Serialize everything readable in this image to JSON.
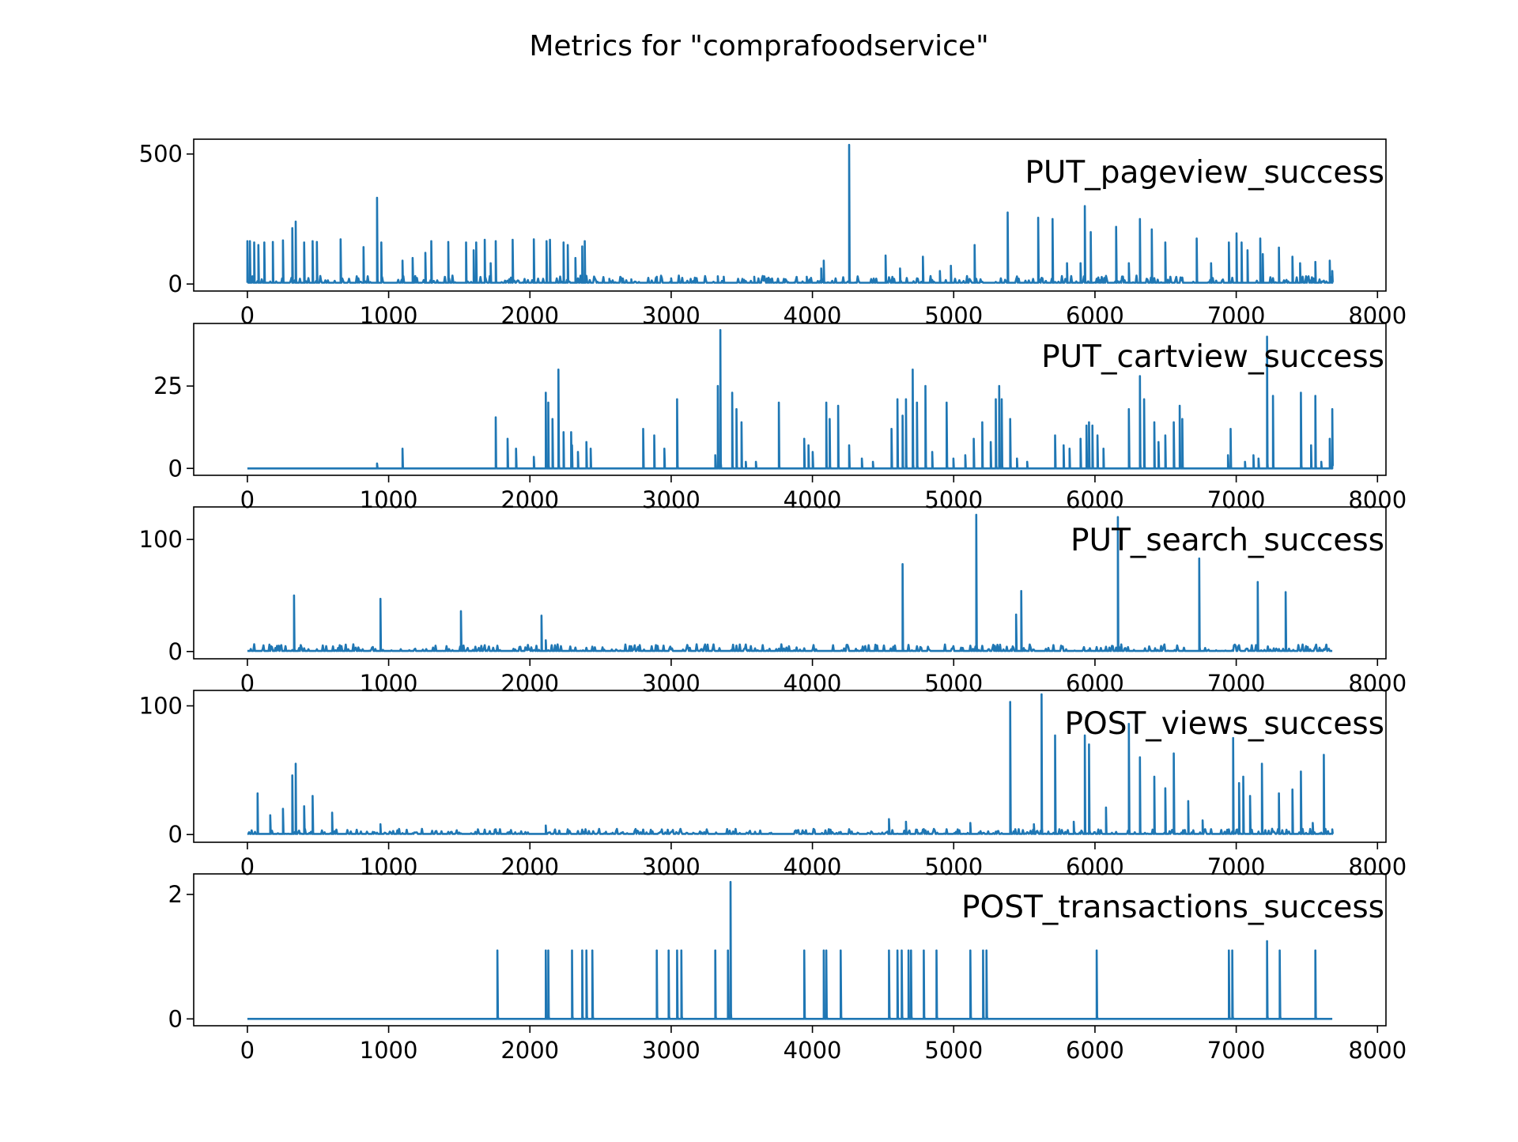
{
  "figure": {
    "title": "Metrics for \"comprafoodservice\""
  },
  "chart_data": {
    "title": "Metrics for \"comprafoodservice\"",
    "type": "line",
    "line_color": "#1f77b4",
    "x_ticks": [
      0,
      1000,
      2000,
      3000,
      4000,
      5000,
      6000,
      7000,
      8000
    ],
    "xlim": [
      -380,
      8060
    ],
    "x_range_data": [
      0,
      7680
    ],
    "grid": false,
    "legend": "none",
    "panels": [
      {
        "label": "PUT_pageview_success",
        "ylim": [
          -27,
          557
        ],
        "y_ticks": [
          0,
          500
        ],
        "baseline": 5,
        "noise_max": 28,
        "spikes": [
          [
            0,
            165
          ],
          [
            20,
            165
          ],
          [
            45,
            160
          ],
          [
            75,
            150
          ],
          [
            120,
            160
          ],
          [
            180,
            162
          ],
          [
            250,
            168
          ],
          [
            320,
            215
          ],
          [
            340,
            240
          ],
          [
            400,
            160
          ],
          [
            460,
            165
          ],
          [
            490,
            162
          ],
          [
            660,
            172
          ],
          [
            820,
            142
          ],
          [
            920,
            332
          ],
          [
            950,
            160
          ],
          [
            1100,
            90
          ],
          [
            1170,
            100
          ],
          [
            1260,
            120
          ],
          [
            1300,
            165
          ],
          [
            1420,
            162
          ],
          [
            1550,
            160
          ],
          [
            1600,
            130
          ],
          [
            1620,
            160
          ],
          [
            1680,
            170
          ],
          [
            1720,
            80
          ],
          [
            1760,
            165
          ],
          [
            1880,
            170
          ],
          [
            2030,
            172
          ],
          [
            2120,
            165
          ],
          [
            2140,
            170
          ],
          [
            2240,
            160
          ],
          [
            2270,
            150
          ],
          [
            2320,
            100
          ],
          [
            2370,
            145
          ],
          [
            2390,
            165
          ],
          [
            2560,
            20
          ],
          [
            2720,
            18
          ],
          [
            2900,
            28
          ],
          [
            3000,
            22
          ],
          [
            3330,
            30
          ],
          [
            3370,
            28
          ],
          [
            3590,
            28
          ],
          [
            3960,
            28
          ],
          [
            4060,
            60
          ],
          [
            4080,
            90
          ],
          [
            4260,
            535
          ],
          [
            4520,
            110
          ],
          [
            4620,
            60
          ],
          [
            4780,
            105
          ],
          [
            4900,
            50
          ],
          [
            4980,
            70
          ],
          [
            5150,
            150
          ],
          [
            5380,
            275
          ],
          [
            5600,
            255
          ],
          [
            5700,
            250
          ],
          [
            5800,
            80
          ],
          [
            5900,
            80
          ],
          [
            5930,
            300
          ],
          [
            5970,
            200
          ],
          [
            6150,
            220
          ],
          [
            6240,
            80
          ],
          [
            6320,
            250
          ],
          [
            6400,
            210
          ],
          [
            6500,
            160
          ],
          [
            6720,
            175
          ],
          [
            6820,
            80
          ],
          [
            6950,
            160
          ],
          [
            7000,
            195
          ],
          [
            7040,
            160
          ],
          [
            7080,
            130
          ],
          [
            7170,
            175
          ],
          [
            7190,
            115
          ],
          [
            7300,
            140
          ],
          [
            7400,
            105
          ],
          [
            7450,
            80
          ],
          [
            7560,
            85
          ],
          [
            7660,
            90
          ],
          [
            7680,
            50
          ]
        ]
      },
      {
        "label": "PUT_cartview_success",
        "ylim": [
          -2.1,
          44
        ],
        "y_ticks": [
          0,
          25
        ],
        "baseline": 0,
        "noise_max": 0,
        "spikes": [
          [
            920,
            1.5
          ],
          [
            1100,
            6
          ],
          [
            1760,
            15.5
          ],
          [
            1840,
            9
          ],
          [
            1900,
            6
          ],
          [
            2030,
            3.5
          ],
          [
            2110,
            23
          ],
          [
            2130,
            20
          ],
          [
            2160,
            15
          ],
          [
            2200,
            30
          ],
          [
            2240,
            11
          ],
          [
            2290,
            11
          ],
          [
            2300,
            7
          ],
          [
            2340,
            5
          ],
          [
            2400,
            8
          ],
          [
            2430,
            6
          ],
          [
            2800,
            12
          ],
          [
            2880,
            10
          ],
          [
            2950,
            6
          ],
          [
            3040,
            21
          ],
          [
            3310,
            4
          ],
          [
            3330,
            25
          ],
          [
            3350,
            42
          ],
          [
            3430,
            23
          ],
          [
            3460,
            18
          ],
          [
            3500,
            14
          ],
          [
            3530,
            2
          ],
          [
            3600,
            2
          ],
          [
            3760,
            20
          ],
          [
            3940,
            9
          ],
          [
            3970,
            7
          ],
          [
            4000,
            5
          ],
          [
            4100,
            20
          ],
          [
            4120,
            15
          ],
          [
            4180,
            19
          ],
          [
            4260,
            7
          ],
          [
            4350,
            3
          ],
          [
            4430,
            2
          ],
          [
            4560,
            12
          ],
          [
            4600,
            21
          ],
          [
            4640,
            16
          ],
          [
            4660,
            21
          ],
          [
            4710,
            30
          ],
          [
            4740,
            20
          ],
          [
            4800,
            25
          ],
          [
            4850,
            5
          ],
          [
            4950,
            20
          ],
          [
            5000,
            3
          ],
          [
            5080,
            4
          ],
          [
            5140,
            9
          ],
          [
            5200,
            14
          ],
          [
            5260,
            8
          ],
          [
            5300,
            21
          ],
          [
            5320,
            25
          ],
          [
            5340,
            21
          ],
          [
            5400,
            15
          ],
          [
            5450,
            3
          ],
          [
            5520,
            2
          ],
          [
            5720,
            10
          ],
          [
            5780,
            7
          ],
          [
            5820,
            6
          ],
          [
            5900,
            9
          ],
          [
            5940,
            13
          ],
          [
            5960,
            14
          ],
          [
            5980,
            13
          ],
          [
            6020,
            10
          ],
          [
            6060,
            6
          ],
          [
            6240,
            18
          ],
          [
            6320,
            28
          ],
          [
            6350,
            21
          ],
          [
            6420,
            14
          ],
          [
            6450,
            8
          ],
          [
            6500,
            10
          ],
          [
            6560,
            14
          ],
          [
            6600,
            19
          ],
          [
            6620,
            15
          ],
          [
            6940,
            4
          ],
          [
            6960,
            12
          ],
          [
            7060,
            2
          ],
          [
            7120,
            4
          ],
          [
            7160,
            3
          ],
          [
            7220,
            40
          ],
          [
            7260,
            22
          ],
          [
            7460,
            23
          ],
          [
            7530,
            7
          ],
          [
            7560,
            22
          ],
          [
            7600,
            2
          ],
          [
            7660,
            9
          ],
          [
            7680,
            18
          ]
        ]
      },
      {
        "label": "PUT_search_success",
        "ylim": [
          -6.5,
          129
        ],
        "y_ticks": [
          0,
          100
        ],
        "baseline": 0.5,
        "noise_max": 6,
        "spikes": [
          [
            330,
            50
          ],
          [
            940,
            47
          ],
          [
            1510,
            36
          ],
          [
            2080,
            32
          ],
          [
            2110,
            10
          ],
          [
            4640,
            78
          ],
          [
            5160,
            122
          ],
          [
            5440,
            33
          ],
          [
            5480,
            54
          ],
          [
            6160,
            120
          ],
          [
            6740,
            83
          ],
          [
            7150,
            62
          ],
          [
            7350,
            53
          ]
        ]
      },
      {
        "label": "POST_views_success",
        "ylim": [
          -6,
          112
        ],
        "y_ticks": [
          0,
          100
        ],
        "baseline": 0.5,
        "noise_max": 4,
        "spikes": [
          [
            70,
            32
          ],
          [
            160,
            15
          ],
          [
            250,
            20
          ],
          [
            320,
            46
          ],
          [
            340,
            55
          ],
          [
            400,
            22
          ],
          [
            460,
            30
          ],
          [
            600,
            17
          ],
          [
            940,
            8
          ],
          [
            2110,
            7
          ],
          [
            4540,
            12
          ],
          [
            4660,
            10
          ],
          [
            5120,
            9
          ],
          [
            5400,
            103
          ],
          [
            5570,
            8
          ],
          [
            5620,
            109
          ],
          [
            5720,
            77
          ],
          [
            5850,
            10
          ],
          [
            5930,
            77
          ],
          [
            5960,
            70
          ],
          [
            6080,
            21
          ],
          [
            6240,
            86
          ],
          [
            6320,
            60
          ],
          [
            6420,
            45
          ],
          [
            6500,
            36
          ],
          [
            6560,
            63
          ],
          [
            6660,
            26
          ],
          [
            6760,
            11
          ],
          [
            6980,
            75
          ],
          [
            7020,
            40
          ],
          [
            7050,
            45
          ],
          [
            7100,
            30
          ],
          [
            7180,
            55
          ],
          [
            7300,
            32
          ],
          [
            7400,
            35
          ],
          [
            7460,
            49
          ],
          [
            7540,
            9
          ],
          [
            7620,
            62
          ],
          [
            7680,
            4
          ]
        ]
      },
      {
        "label": "POST_transactions_success",
        "ylim": [
          -0.11,
          2.33
        ],
        "y_ticks": [
          0,
          2
        ],
        "baseline": 0,
        "noise_max": 0,
        "spikes": [
          [
            1770,
            1.1
          ],
          [
            2110,
            1.1
          ],
          [
            2130,
            1.1
          ],
          [
            2300,
            1.1
          ],
          [
            2370,
            1.1
          ],
          [
            2400,
            1.1
          ],
          [
            2440,
            1.1
          ],
          [
            2900,
            1.1
          ],
          [
            2980,
            1.1
          ],
          [
            3040,
            1.1
          ],
          [
            3070,
            1.1
          ],
          [
            3310,
            1.1
          ],
          [
            3400,
            1.1
          ],
          [
            3420,
            2.2
          ],
          [
            3940,
            1.1
          ],
          [
            4080,
            1.1
          ],
          [
            4100,
            1.1
          ],
          [
            4200,
            1.1
          ],
          [
            4540,
            1.1
          ],
          [
            4600,
            1.1
          ],
          [
            4630,
            1.1
          ],
          [
            4680,
            1.1
          ],
          [
            4700,
            1.1
          ],
          [
            4790,
            1.1
          ],
          [
            4880,
            1.1
          ],
          [
            5120,
            1.1
          ],
          [
            5210,
            1.1
          ],
          [
            5230,
            1.1
          ],
          [
            6010,
            1.1
          ],
          [
            6950,
            1.1
          ],
          [
            6970,
            1.1
          ],
          [
            7220,
            1.25
          ],
          [
            7310,
            1.1
          ],
          [
            7560,
            1.1
          ]
        ]
      }
    ]
  }
}
